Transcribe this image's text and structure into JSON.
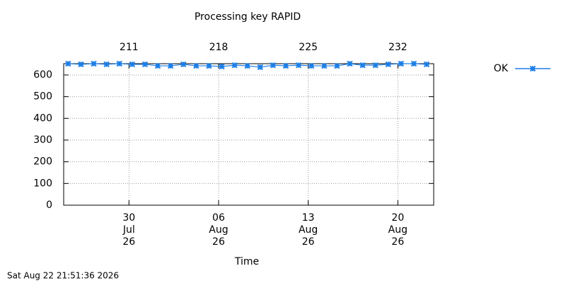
{
  "chart_data": {
    "type": "line",
    "title": "Processing key RAPID",
    "xlabel": "Time",
    "footer": "Sat Aug 22 21:51:36 2026",
    "x": [
      206.25,
      207.25,
      208.25,
      209.25,
      210.25,
      211.25,
      212.25,
      213.25,
      214.25,
      215.25,
      216.25,
      217.25,
      218.25,
      219.25,
      220.25,
      221.25,
      222.25,
      223.25,
      224.25,
      225.25,
      226.25,
      227.25,
      228.25,
      229.25,
      230.25,
      231.25,
      232.25,
      233.25,
      234.25
    ],
    "series": [
      {
        "name": "OK",
        "color": "#1e7fe6",
        "values": [
          652,
          649,
          652,
          649,
          652,
          649,
          649,
          642,
          642,
          649,
          642,
          642,
          639,
          645,
          642,
          636,
          645,
          642,
          645,
          642,
          642,
          642,
          652,
          645,
          645,
          649,
          652,
          652,
          649
        ]
      }
    ],
    "xlim": [
      205.9,
      234.8
    ],
    "ylim": [
      0,
      652
    ],
    "yticks": [
      0,
      100,
      200,
      300,
      400,
      500,
      600
    ],
    "xticks": [
      {
        "value": 211,
        "label": "30\nJul\n26"
      },
      {
        "value": 218,
        "label": "06\nAug\n26"
      },
      {
        "value": 225,
        "label": "13\nAug\n26"
      },
      {
        "value": 232,
        "label": "20\nAug\n26"
      }
    ],
    "x2ticks": [
      211,
      218,
      225,
      232
    ],
    "grid": true,
    "legend": "right"
  }
}
